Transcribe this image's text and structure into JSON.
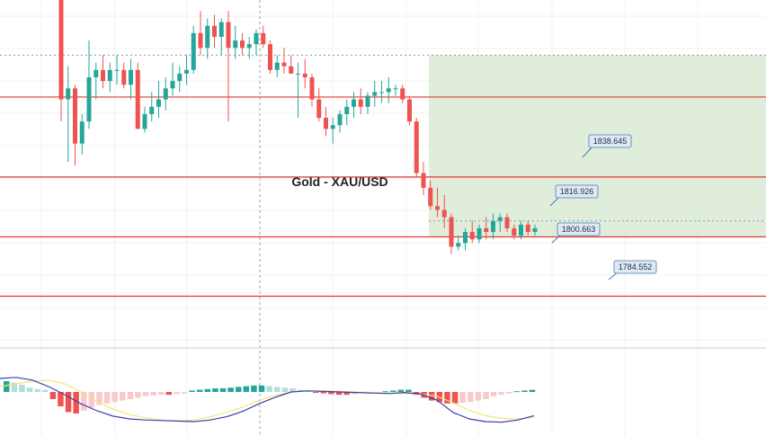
{
  "title": "Gold - XAU/USD",
  "colors": {
    "up": "#26a69a",
    "down": "#ef5350",
    "level_line": "#e53935",
    "zone_fill": "#d9ead3",
    "label_bg": "#dfe9f5",
    "label_border": "#4a79b8",
    "macd_line": "#3f3fb0",
    "signal_line": "#f7e27a",
    "hist_pos_strong": "#26a69a",
    "hist_pos_weak": "#b2dfdb",
    "hist_neg_strong": "#ef5350",
    "hist_neg_weak": "#f8c9cd",
    "grid": "#eef0f3"
  },
  "chart_data": {
    "type": "candlestick",
    "y_range": [
      1771,
      1865
    ],
    "levels": [
      {
        "name": "level-1838",
        "label": "1838.645",
        "value": 1838.645
      },
      {
        "name": "level-1816",
        "label": "1816.926",
        "value": 1816.926
      },
      {
        "name": "level-1800",
        "label": "1800.663",
        "value": 1800.663
      },
      {
        "name": "level-1784",
        "label": "1784.552",
        "value": 1784.552
      }
    ],
    "candles": [
      [
        1865,
        1865,
        1832,
        1838
      ],
      [
        1838,
        1847,
        1821,
        1841
      ],
      [
        1841,
        1842,
        1820,
        1826
      ],
      [
        1826,
        1834,
        1823,
        1832
      ],
      [
        1832,
        1854,
        1830,
        1844
      ],
      [
        1844,
        1848,
        1838,
        1846
      ],
      [
        1846,
        1850,
        1841,
        1843
      ],
      [
        1843,
        1848,
        1840,
        1846
      ],
      [
        1846,
        1850,
        1842,
        1846
      ],
      [
        1846,
        1848,
        1841,
        1842
      ],
      [
        1842,
        1849,
        1838,
        1846
      ],
      [
        1846,
        1848,
        1830,
        1830
      ],
      [
        1830,
        1836,
        1829,
        1834
      ],
      [
        1834,
        1840,
        1832,
        1836
      ],
      [
        1836,
        1843,
        1833,
        1838
      ],
      [
        1838,
        1844,
        1835,
        1841
      ],
      [
        1841,
        1848,
        1839,
        1843
      ],
      [
        1843,
        1847,
        1840,
        1845
      ],
      [
        1845,
        1850,
        1842,
        1846
      ],
      [
        1846,
        1858,
        1845,
        1856
      ],
      [
        1856,
        1862,
        1850,
        1852
      ],
      [
        1852,
        1860,
        1849,
        1858
      ],
      [
        1858,
        1861,
        1852,
        1855
      ],
      [
        1855,
        1860,
        1850,
        1859
      ],
      [
        1859,
        1862,
        1832,
        1852
      ],
      [
        1852,
        1858,
        1849,
        1854
      ],
      [
        1854,
        1856,
        1850,
        1852
      ],
      [
        1852,
        1855,
        1849,
        1853
      ],
      [
        1853,
        1857,
        1850,
        1856
      ],
      [
        1856,
        1858,
        1852,
        1853
      ],
      [
        1853,
        1854,
        1845,
        1846
      ],
      [
        1846,
        1850,
        1844,
        1848
      ],
      [
        1848,
        1852,
        1845,
        1847
      ],
      [
        1847,
        1850,
        1845,
        1845
      ],
      [
        1845,
        1848,
        1833,
        1845
      ],
      [
        1845,
        1849,
        1841,
        1844
      ],
      [
        1844,
        1845,
        1836,
        1838
      ],
      [
        1838,
        1841,
        1832,
        1833
      ],
      [
        1833,
        1836,
        1828,
        1830
      ],
      [
        1830,
        1833,
        1826,
        1831
      ],
      [
        1831,
        1835,
        1829,
        1834
      ],
      [
        1834,
        1838,
        1831,
        1836
      ],
      [
        1836,
        1840,
        1833,
        1838
      ],
      [
        1838,
        1841,
        1834,
        1836
      ],
      [
        1836,
        1840,
        1834,
        1839
      ],
      [
        1839,
        1843,
        1836,
        1840
      ],
      [
        1840,
        1843,
        1837,
        1840
      ],
      [
        1840,
        1844,
        1837,
        1841
      ],
      [
        1841,
        1842,
        1839,
        1841
      ],
      [
        1841,
        1842,
        1837,
        1838
      ],
      [
        1838,
        1839,
        1831,
        1832
      ],
      [
        1832,
        1833,
        1817,
        1818
      ],
      [
        1818,
        1821,
        1812,
        1814
      ],
      [
        1814,
        1816,
        1808,
        1809
      ],
      [
        1809,
        1814,
        1806,
        1808
      ],
      [
        1808,
        1812,
        1803,
        1806
      ],
      [
        1806,
        1807,
        1796,
        1798
      ],
      [
        1798,
        1801,
        1797,
        1799
      ],
      [
        1799,
        1803,
        1797,
        1802
      ],
      [
        1802,
        1805,
        1799,
        1800
      ],
      [
        1800,
        1804,
        1799,
        1803
      ],
      [
        1803,
        1806,
        1800,
        1802
      ],
      [
        1802,
        1807,
        1800,
        1805
      ],
      [
        1805,
        1807,
        1802,
        1806
      ],
      [
        1806,
        1807,
        1802,
        1803
      ],
      [
        1803,
        1804,
        1800,
        1801
      ],
      [
        1801,
        1805,
        1800,
        1804
      ],
      [
        1804,
        1805,
        1801,
        1802
      ],
      [
        1802,
        1804,
        1801,
        1803
      ]
    ],
    "macd": {
      "histogram": [
        0.15,
        0.13,
        0.1,
        0.06,
        0.04,
        0.03,
        -0.1,
        -0.2,
        -0.28,
        -0.3,
        -0.26,
        -0.22,
        -0.18,
        -0.16,
        -0.14,
        -0.12,
        -0.1,
        -0.08,
        -0.06,
        -0.05,
        -0.04,
        -0.04,
        -0.03,
        -0.02,
        0.02,
        0.03,
        0.04,
        0.05,
        0.05,
        0.06,
        0.07,
        0.08,
        0.09,
        0.09,
        0.08,
        0.07,
        0.06,
        0.05,
        0.03,
        0.02,
        -0.01,
        -0.02,
        -0.03,
        -0.04,
        -0.04,
        -0.03,
        -0.02,
        -0.02,
        -0.01,
        0.01,
        0.02,
        0.03,
        0.03,
        -0.04,
        -0.08,
        -0.12,
        -0.14,
        -0.16,
        -0.16,
        -0.15,
        -0.14,
        -0.12,
        -0.1,
        -0.06,
        -0.04,
        -0.02,
        0.01,
        0.02,
        0.03
      ],
      "macd_line": [
        0.25,
        0.27,
        0.22,
        0.1,
        -0.05,
        -0.22,
        -0.35,
        -0.45,
        -0.5,
        -0.52,
        -0.53,
        -0.54,
        -0.55,
        -0.52,
        -0.46,
        -0.36,
        -0.22,
        -0.1,
        0.0,
        0.02,
        0.01,
        0.0,
        -0.01,
        -0.02,
        -0.03,
        -0.01,
        -0.04,
        -0.15,
        -0.38,
        -0.5,
        -0.55,
        -0.56,
        -0.52,
        -0.44
      ],
      "signal_line": [
        0.1,
        0.15,
        0.2,
        0.22,
        0.15,
        0.0,
        -0.18,
        -0.32,
        -0.42,
        -0.48,
        -0.52,
        -0.54,
        -0.52,
        -0.46,
        -0.38,
        -0.28,
        -0.16,
        -0.06,
        0.0,
        0.02,
        0.02,
        0.01,
        0.0,
        -0.01,
        -0.02,
        -0.03,
        -0.04,
        -0.08,
        -0.2,
        -0.34,
        -0.44,
        -0.49,
        -0.5,
        -0.47
      ]
    }
  }
}
